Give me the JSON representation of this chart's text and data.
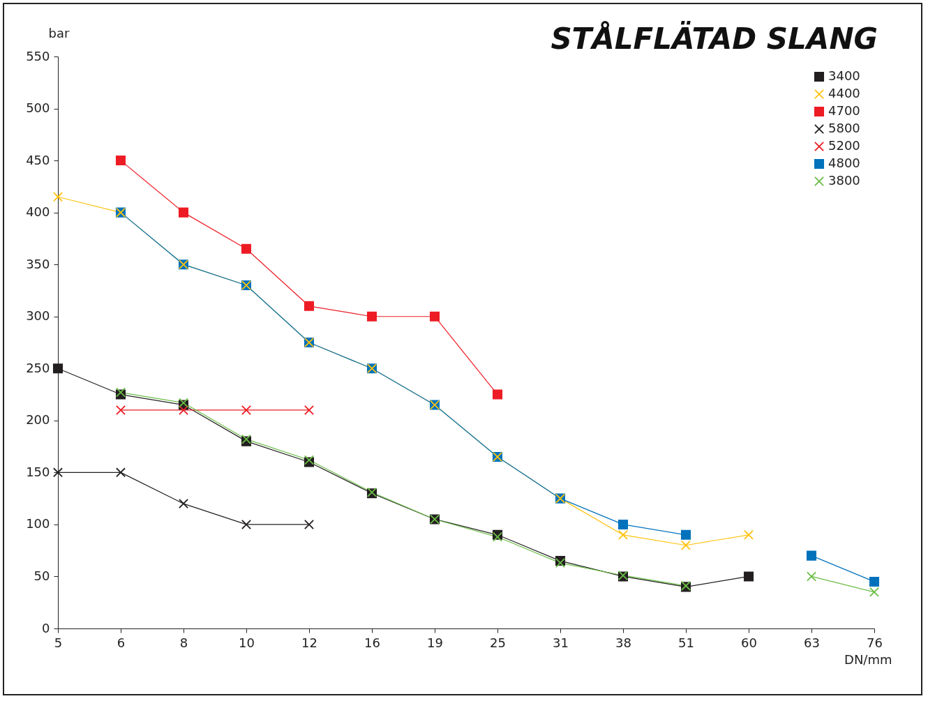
{
  "chart_data": {
    "type": "line",
    "title": "STÅLFLÄTAD SLANG",
    "xlabel": "DN/mm",
    "ylabel": "bar",
    "categories": [
      "5",
      "6",
      "8",
      "10",
      "12",
      "16",
      "19",
      "25",
      "31",
      "38",
      "51",
      "60",
      "63",
      "76"
    ],
    "ylim": [
      0,
      550
    ],
    "yticks": [
      0,
      50,
      100,
      150,
      200,
      250,
      300,
      350,
      400,
      450,
      500,
      550
    ],
    "grid": false,
    "legend": "top right",
    "series": [
      {
        "name": "3400",
        "color": "#231f20",
        "marker": "square",
        "values": [
          250,
          225,
          215,
          180,
          160,
          130,
          105,
          90,
          65,
          50,
          40,
          50,
          null,
          null
        ]
      },
      {
        "name": "4400",
        "color": "#ffc20e",
        "marker": "cross",
        "values": [
          415,
          400,
          350,
          330,
          275,
          250,
          215,
          165,
          125,
          90,
          80,
          90,
          null,
          null
        ]
      },
      {
        "name": "4700",
        "color": "#ed1c24",
        "marker": "square",
        "values": [
          null,
          450,
          400,
          365,
          310,
          300,
          300,
          225,
          null,
          null,
          null,
          null,
          null,
          null
        ]
      },
      {
        "name": "5800",
        "color": "#231f20",
        "marker": "cross",
        "values": [
          150,
          150,
          120,
          100,
          100,
          null,
          null,
          null,
          null,
          null,
          null,
          null,
          null,
          null
        ]
      },
      {
        "name": "5200",
        "color": "#ed1c24",
        "marker": "cross",
        "values": [
          null,
          210,
          210,
          210,
          210,
          null,
          null,
          null,
          null,
          null,
          null,
          null,
          null,
          null
        ]
      },
      {
        "name": "4800",
        "color": "#0072bc",
        "marker": "square",
        "values": [
          null,
          400,
          350,
          330,
          275,
          250,
          215,
          165,
          125,
          100,
          90,
          null,
          70,
          45
        ]
      },
      {
        "name": "3800",
        "color": "#6abd45",
        "marker": "cross",
        "values": [
          null,
          227,
          217,
          182,
          162,
          131,
          105,
          88,
          63,
          51,
          41,
          null,
          50,
          35
        ]
      }
    ]
  }
}
